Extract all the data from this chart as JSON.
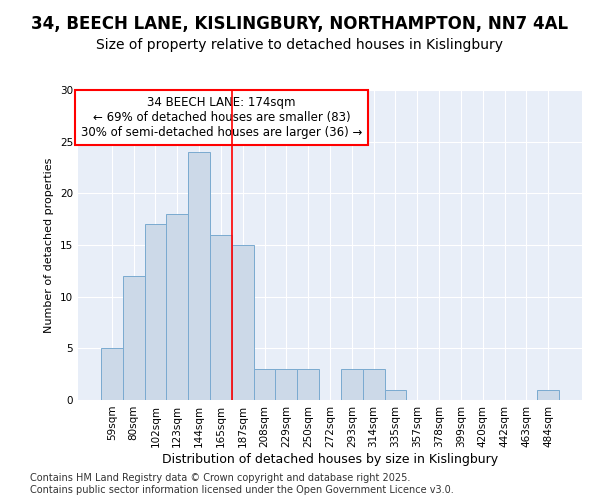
{
  "title1": "34, BEECH LANE, KISLINGBURY, NORTHAMPTON, NN7 4AL",
  "title2": "Size of property relative to detached houses in Kislingbury",
  "xlabel": "Distribution of detached houses by size in Kislingbury",
  "ylabel": "Number of detached properties",
  "categories": [
    "59sqm",
    "80sqm",
    "102sqm",
    "123sqm",
    "144sqm",
    "165sqm",
    "187sqm",
    "208sqm",
    "229sqm",
    "250sqm",
    "272sqm",
    "293sqm",
    "314sqm",
    "335sqm",
    "357sqm",
    "378sqm",
    "399sqm",
    "420sqm",
    "442sqm",
    "463sqm",
    "484sqm"
  ],
  "values": [
    5,
    12,
    17,
    18,
    24,
    16,
    15,
    3,
    3,
    3,
    0,
    3,
    3,
    1,
    0,
    0,
    0,
    0,
    0,
    0,
    1
  ],
  "bar_color": "#ccd9e8",
  "bar_edge_color": "#7aaad0",
  "bar_width": 1.0,
  "vline_x": 5.5,
  "vline_color": "red",
  "annotation_text": "34 BEECH LANE: 174sqm\n← 69% of detached houses are smaller (83)\n30% of semi-detached houses are larger (36) →",
  "annotation_box_color": "white",
  "annotation_box_edge": "red",
  "ylim": [
    0,
    30
  ],
  "yticks": [
    0,
    5,
    10,
    15,
    20,
    25,
    30
  ],
  "background_color": "#e8eef8",
  "grid_color": "white",
  "footer": "Contains HM Land Registry data © Crown copyright and database right 2025.\nContains public sector information licensed under the Open Government Licence v3.0.",
  "title1_fontsize": 12,
  "title2_fontsize": 10,
  "xlabel_fontsize": 9,
  "ylabel_fontsize": 8,
  "tick_fontsize": 7.5,
  "annotation_fontsize": 8.5,
  "footer_fontsize": 7
}
